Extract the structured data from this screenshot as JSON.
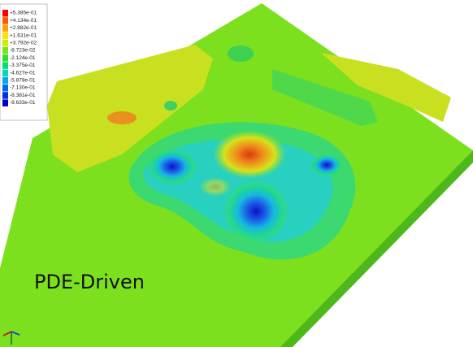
{
  "legend": {
    "entries": [
      "+5.385e-01",
      "+4.134e-01",
      "+2.882e-01",
      "+1.631e-01",
      "+3.792e-02",
      "-8.723e-02",
      "-2.124e-01",
      "-3.375e-01",
      "-4.627e-01",
      "-5.878e-01",
      "-7.130e-01",
      "-8.381e-01",
      "-9.633e-01"
    ]
  },
  "caption": "PDE-Driven"
}
